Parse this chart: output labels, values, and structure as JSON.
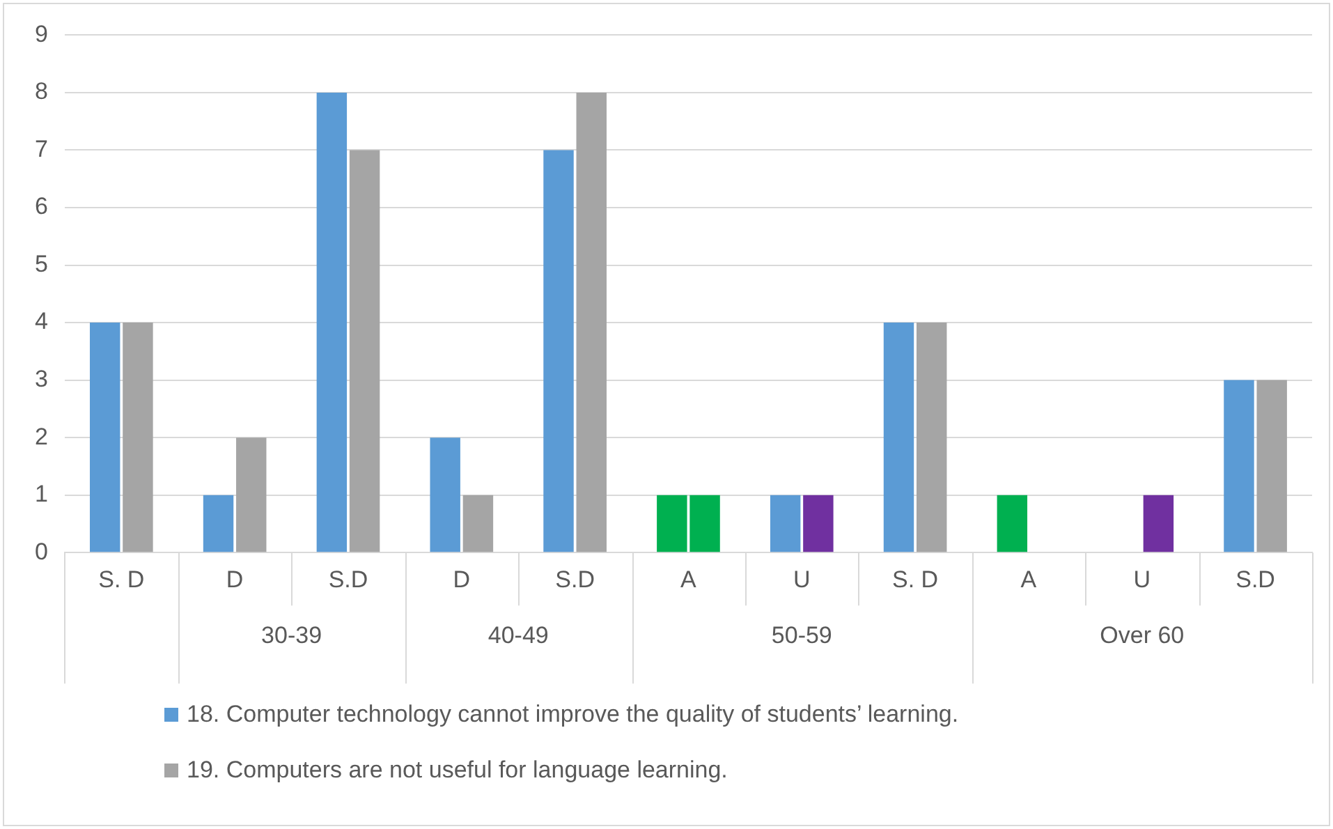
{
  "chart_data": {
    "type": "bar",
    "categories": [
      "S. D",
      "D",
      "S.D",
      "D",
      "S.D",
      "A",
      "U",
      "S. D",
      "A",
      "U",
      "S.D"
    ],
    "annotations": [
      "30-39",
      "40-49",
      "50-59",
      "Over 60"
    ],
    "series": [
      {
        "name": "18. Computer technology cannot improve the quality of students’ learning.",
        "color": "#5b9bd5",
        "colors": [
          "#5b9bd5",
          "#5b9bd5",
          "#5b9bd5",
          "#5b9bd5",
          "#5b9bd5",
          "#00b050",
          "#5b9bd5",
          "#5b9bd5",
          "#00b050",
          "#5b9bd5",
          "#5b9bd5"
        ],
        "values": [
          4,
          1,
          8,
          2,
          7,
          1,
          1,
          4,
          1,
          null,
          3
        ]
      },
      {
        "name": "19. Computers are not useful for language learning.",
        "color": "#a5a5a5",
        "colors": [
          "#a5a5a5",
          "#a5a5a5",
          "#a5a5a5",
          "#a5a5a5",
          "#a5a5a5",
          "#00b050",
          "#7030a0",
          "#a5a5a5",
          "#a5a5a5",
          "#7030a0",
          "#a5a5a5"
        ],
        "values": [
          4,
          2,
          7,
          1,
          8,
          1,
          1,
          4,
          null,
          1,
          3
        ]
      }
    ],
    "ylim": [
      0,
      9
    ],
    "yticks": [
      0,
      1,
      2,
      3,
      4,
      5,
      6,
      7,
      8,
      9
    ],
    "grid": "y",
    "legend": "bottom"
  }
}
